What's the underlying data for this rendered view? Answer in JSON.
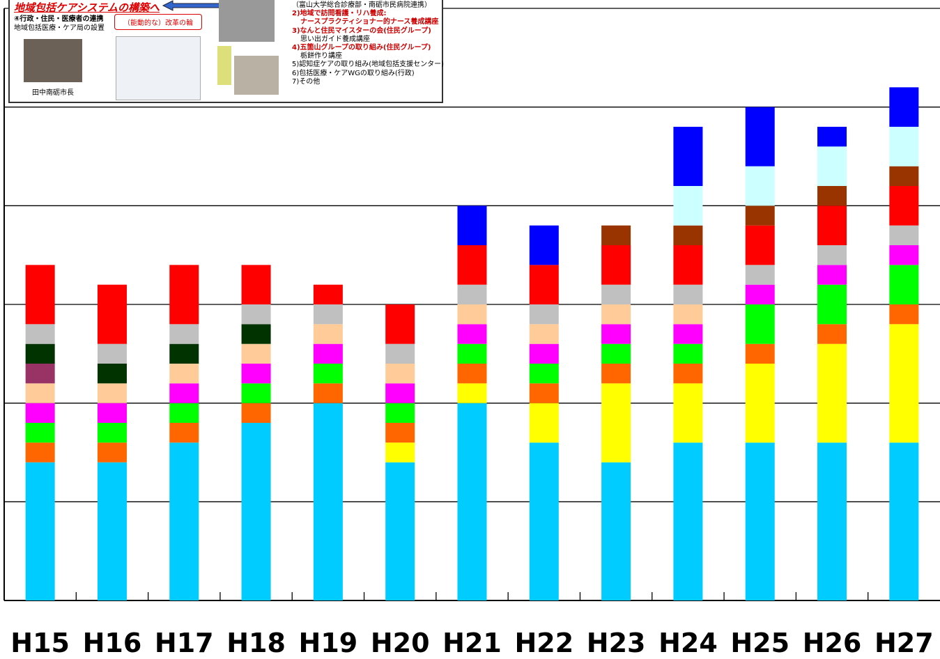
{
  "chart_data": {
    "type": "stacked_bar",
    "categories": [
      "H15",
      "H16",
      "H17",
      "H18",
      "H19",
      "H20",
      "H21",
      "H22",
      "H23",
      "H24",
      "H25",
      "H26",
      "H27"
    ],
    "series": [
      {
        "color": "#00ccff",
        "values": [
          7,
          7,
          8,
          9,
          10,
          7,
          10,
          8,
          7,
          8,
          8,
          8,
          8
        ]
      },
      {
        "color": "#ffff00",
        "values": [
          0,
          0,
          0,
          0,
          0,
          1,
          1,
          2,
          4,
          3,
          4,
          5,
          6
        ]
      },
      {
        "color": "#ff6600",
        "values": [
          1,
          1,
          1,
          1,
          1,
          1,
          1,
          1,
          1,
          1,
          1,
          1,
          1
        ]
      },
      {
        "color": "#00ff00",
        "values": [
          1,
          1,
          1,
          1,
          1,
          1,
          1,
          1,
          1,
          1,
          2,
          2,
          2
        ]
      },
      {
        "color": "#ff00ff",
        "values": [
          1,
          1,
          1,
          1,
          1,
          1,
          1,
          1,
          1,
          1,
          1,
          1,
          1
        ]
      },
      {
        "color": "#ffcc99",
        "values": [
          1,
          1,
          1,
          1,
          1,
          1,
          1,
          1,
          1,
          1,
          0,
          0,
          0
        ]
      },
      {
        "color": "#993366",
        "values": [
          1,
          0,
          0,
          0,
          0,
          0,
          0,
          0,
          0,
          0,
          0,
          0,
          0
        ]
      },
      {
        "color": "#003300",
        "values": [
          1,
          1,
          1,
          1,
          0,
          0,
          0,
          0,
          0,
          0,
          0,
          0,
          0
        ]
      },
      {
        "color": "#c0c0c0",
        "values": [
          1,
          1,
          1,
          1,
          1,
          1,
          1,
          1,
          1,
          1,
          1,
          1,
          1
        ]
      },
      {
        "color": "#ff0000",
        "values": [
          3,
          3,
          3,
          2,
          1,
          2,
          2,
          2,
          2,
          2,
          2,
          2,
          2
        ]
      },
      {
        "color": "#993300",
        "values": [
          0,
          0,
          0,
          0,
          0,
          0,
          0,
          0,
          1,
          1,
          1,
          1,
          1
        ]
      },
      {
        "color": "#ccffff",
        "values": [
          0,
          0,
          0,
          0,
          0,
          0,
          0,
          0,
          0,
          2,
          2,
          2,
          2
        ]
      },
      {
        "color": "#0000ff",
        "values": [
          0,
          0,
          0,
          0,
          0,
          0,
          2,
          2,
          0,
          3,
          3,
          1,
          2
        ]
      }
    ],
    "ylim": [
      0,
      30
    ],
    "yticks": [
      0,
      5,
      10,
      15,
      20,
      25,
      30
    ],
    "grid": true
  },
  "inset": {
    "title": "地域包括ケアシステムの構築へ",
    "left_lines": [
      "④行政・住民・医療者の連携",
      "地域包括医療・ケア局の設置"
    ],
    "ring": "（能動的な）改革の輪",
    "caption": "田中南砺市長",
    "right_lines": [
      "（富山大学総合診療部・南砺市民病院連携）",
      "2)地域で訪問看護・リハ養成:",
      "ナースプラクティショナー的ナース養成講座",
      "3)なんと住民マイスターの会(住民グループ)",
      "思い出ガイド養成講座",
      "4)五箇山グループの取り組み(住民グループ)",
      "栃餅作り講座",
      "5)認知症ケアの取り組み(地域包括支援センター)",
      "6)包括医療・ケアWGの取り組み(行政)",
      "7)その他"
    ]
  }
}
